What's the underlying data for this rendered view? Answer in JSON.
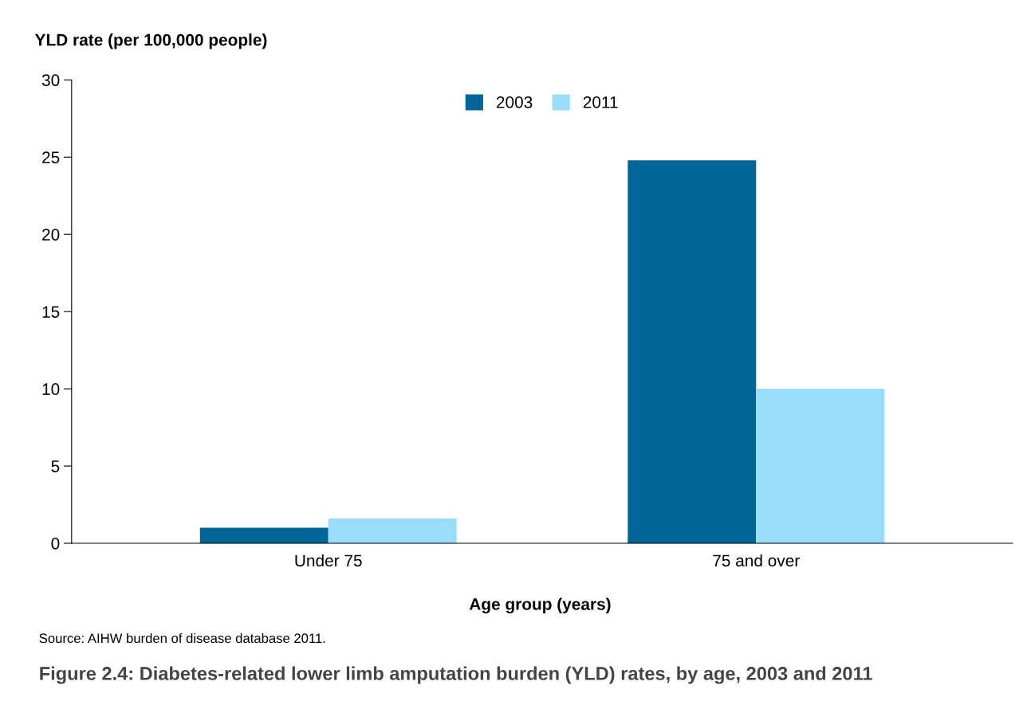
{
  "chart_data": {
    "type": "bar",
    "title": "Figure 2.4: Diabetes-related lower limb amputation burden (YLD) rates, by age, 2003 and 2011",
    "xlabel": "Age group (years)",
    "ylabel": "YLD rate (per 100,000 people)",
    "categories": [
      "Under 75",
      "75 and over"
    ],
    "series": [
      {
        "name": "2003",
        "color": "#006699",
        "values": [
          1.0,
          24.8
        ]
      },
      {
        "name": "2011",
        "color": "#99ddfb",
        "values": [
          1.6,
          10.0
        ]
      }
    ],
    "ylim": [
      0,
      30
    ],
    "yticks": [
      0,
      5,
      10,
      15,
      20,
      25,
      30
    ],
    "grid": false,
    "legend": "top",
    "annotations": [
      "Source: AIHW burden of disease database 2011."
    ]
  }
}
